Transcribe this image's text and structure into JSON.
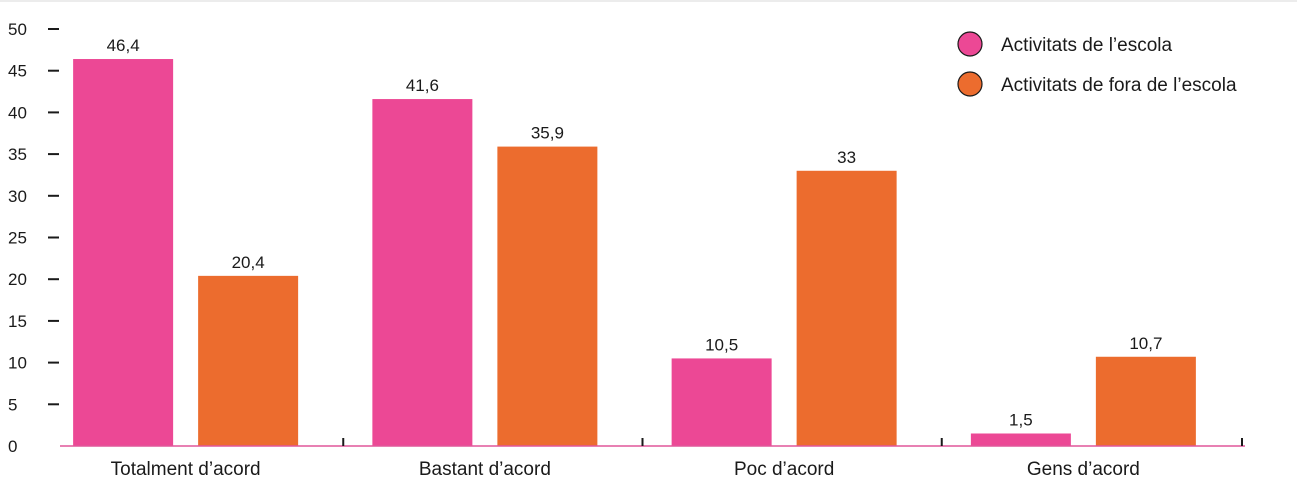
{
  "chart_data": {
    "type": "bar",
    "categories": [
      "Totalment d’acord",
      "Bastant d’acord",
      "Poc d’acord",
      "Gens d’acord"
    ],
    "series": [
      {
        "name": "Activitats de l’escola",
        "values": [
          46.4,
          41.6,
          10.5,
          1.5
        ],
        "labels": [
          "46,4",
          "41,6",
          "10,5",
          "1,5"
        ],
        "color": "#EC4895"
      },
      {
        "name": "Activitats de fora de l’escola",
        "values": [
          20.4,
          35.9,
          33,
          10.7
        ],
        "labels": [
          "20,4",
          "35,9",
          "33",
          "10,7"
        ],
        "color": "#EC6C2E"
      }
    ],
    "yticks": [
      "0",
      "5",
      "10",
      "15",
      "20",
      "25",
      "30",
      "35",
      "40",
      "45",
      "50"
    ],
    "ylim": [
      0,
      50
    ],
    "grid": false,
    "legend_position": "top-right",
    "axis_color": "#E0579A",
    "top_rule_color": "#D9D9D9"
  }
}
